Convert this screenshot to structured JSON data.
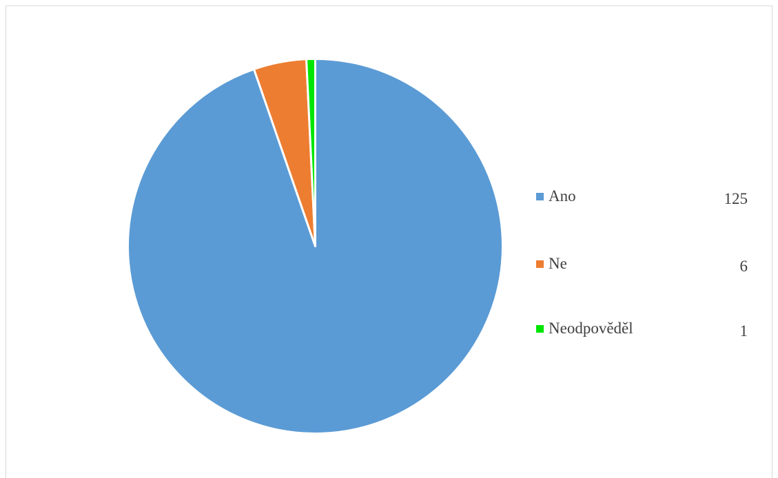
{
  "chart_data": {
    "type": "pie",
    "title": "",
    "slices": [
      {
        "label": "Ano",
        "value": 125,
        "color": "#5B9BD5"
      },
      {
        "label": "Ne",
        "value": 6,
        "color": "#ED7D31"
      },
      {
        "label": "Neodpověděl",
        "value": 1,
        "color": "#00E600"
      }
    ],
    "start_angle_deg": 0,
    "direction": "clockwise",
    "legend_position": "right",
    "legend_shows_values": true
  }
}
